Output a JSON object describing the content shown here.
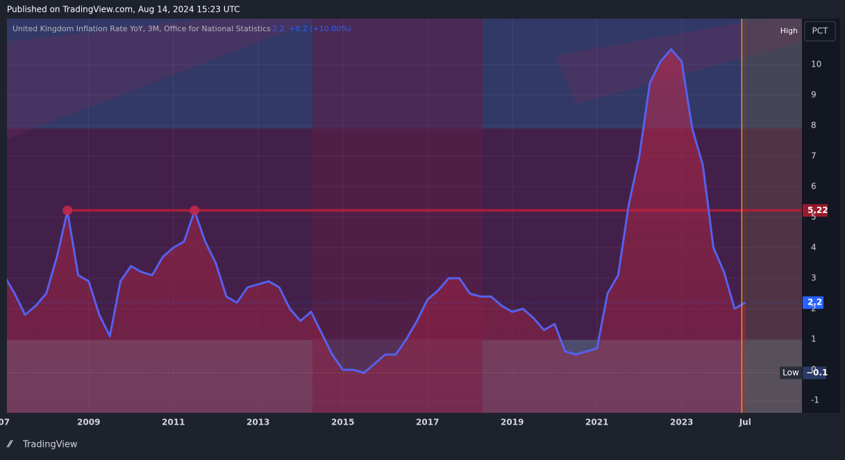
{
  "header": "Published on TradingView.com, Aug 14, 2024 15:23 UTC",
  "footer": "TradingView",
  "chart_data": {
    "type": "area",
    "title": "United Kingdom Inflation Rate YoY, 3M, Office for National Statistics",
    "last_value": 2.2,
    "change": "+0.2 (+10.00%)",
    "unit": "PCT",
    "high_label": "High",
    "low_label": "Low",
    "low_value": {
      "value": -0.1,
      "label": "−0.1"
    },
    "level": 5.22,
    "level_points": [
      2008.5,
      2011.5
    ],
    "date_line": 2024.42,
    "grid": true,
    "series": [
      {
        "name": "UK Inflation Rate YoY",
        "color": "#5661ee",
        "x": [
          2007.0,
          2007.25,
          2007.5,
          2007.75,
          2008.0,
          2008.25,
          2008.5,
          2008.75,
          2009.0,
          2009.25,
          2009.5,
          2009.75,
          2010.0,
          2010.25,
          2010.5,
          2010.75,
          2011.0,
          2011.25,
          2011.5,
          2011.75,
          2012.0,
          2012.25,
          2012.5,
          2012.75,
          2013.0,
          2013.25,
          2013.5,
          2013.75,
          2014.0,
          2014.25,
          2014.5,
          2014.75,
          2015.0,
          2015.25,
          2015.5,
          2015.75,
          2016.0,
          2016.25,
          2016.5,
          2016.75,
          2017.0,
          2017.25,
          2017.5,
          2017.75,
          2018.0,
          2018.25,
          2018.5,
          2018.75,
          2019.0,
          2019.25,
          2019.5,
          2019.75,
          2020.0,
          2020.25,
          2020.5,
          2020.75,
          2021.0,
          2021.25,
          2021.5,
          2021.75,
          2022.0,
          2022.25,
          2022.5,
          2022.75,
          2023.0,
          2023.25,
          2023.5,
          2023.75,
          2024.0,
          2024.25,
          2024.5
        ],
        "values": [
          3.1,
          2.5,
          1.8,
          2.1,
          2.5,
          3.7,
          5.2,
          3.1,
          2.9,
          1.8,
          1.1,
          2.9,
          3.4,
          3.2,
          3.1,
          3.7,
          4.0,
          4.2,
          5.2,
          4.2,
          3.5,
          2.4,
          2.2,
          2.7,
          2.8,
          2.9,
          2.7,
          2.0,
          1.6,
          1.9,
          1.2,
          0.5,
          0.0,
          0.0,
          -0.1,
          0.2,
          0.5,
          0.5,
          1.0,
          1.6,
          2.3,
          2.6,
          3.0,
          3.0,
          2.5,
          2.4,
          2.4,
          2.1,
          1.9,
          2.0,
          1.7,
          1.3,
          1.5,
          0.6,
          0.5,
          0.6,
          0.7,
          2.5,
          3.1,
          5.4,
          7.0,
          9.4,
          10.1,
          10.5,
          10.1,
          7.9,
          6.7,
          4.0,
          3.2,
          2.0,
          2.2
        ]
      }
    ],
    "xlim": [
      2007.07,
      2025.84
    ],
    "xticks": [
      {
        "value": 2007,
        "label": "07"
      },
      2009,
      2011,
      2013,
      2015,
      2017,
      2019,
      2021,
      2023,
      {
        "value": 2024.5,
        "label": "Jul"
      }
    ],
    "ylim": [
      -1.41,
      11.5
    ],
    "yticks": [
      -1,
      0,
      1,
      2,
      3,
      4,
      5,
      6,
      7,
      8,
      9,
      10
    ]
  }
}
